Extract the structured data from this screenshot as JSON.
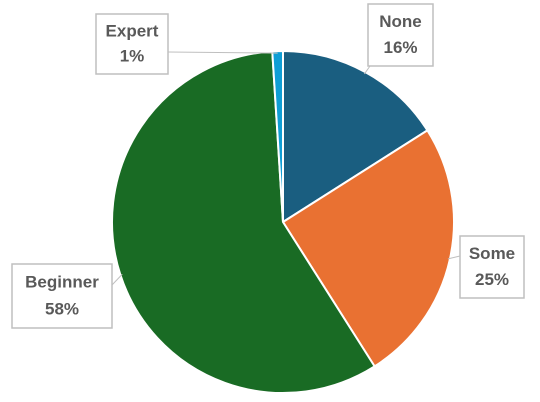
{
  "chart_data": {
    "type": "pie",
    "categories": [
      "None",
      "Some",
      "Beginner",
      "Expert"
    ],
    "values": [
      16,
      25,
      58,
      1
    ],
    "value_labels": [
      "16%",
      "25%",
      "58%",
      "1%"
    ],
    "colors": [
      "#1a5e80",
      "#e97132",
      "#196b24",
      "#0f9ed5"
    ]
  }
}
